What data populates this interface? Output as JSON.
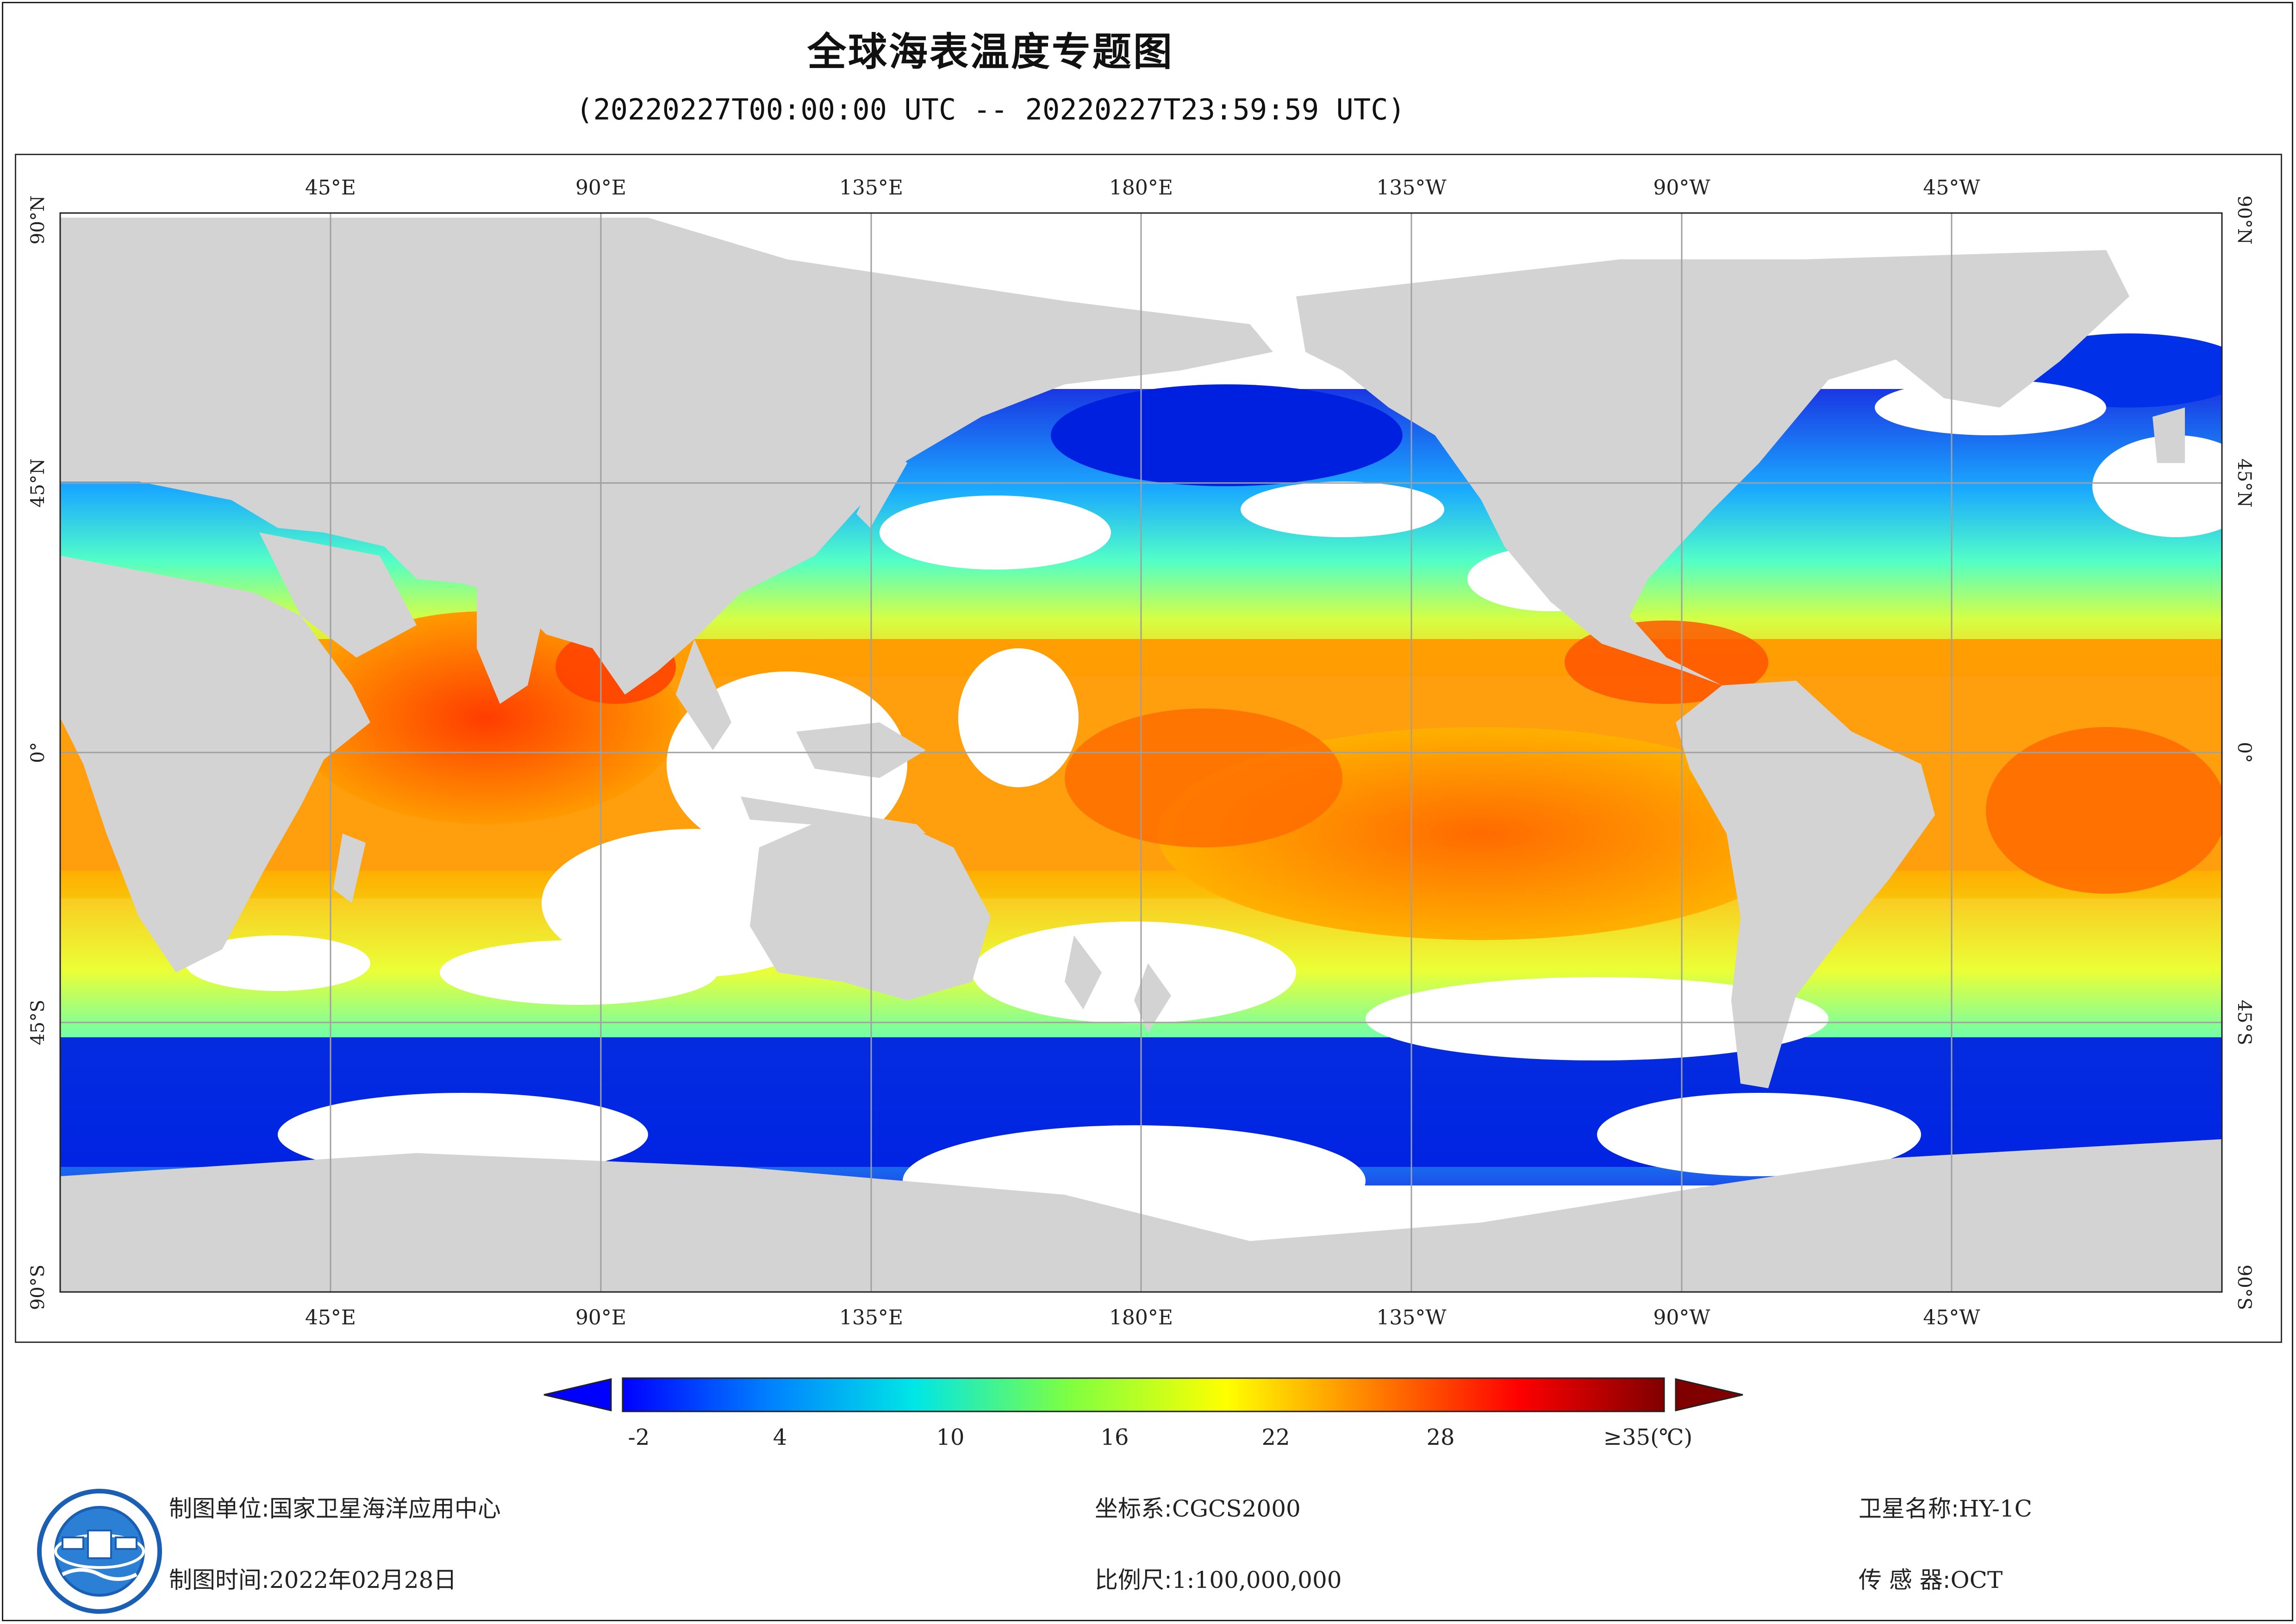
{
  "title": "全球海表温度专题图",
  "subtitle": "(20220227T00:00:00 UTC -- 20220227T23:59:59 UTC)",
  "map": {
    "lon_labels": [
      "45°E",
      "90°E",
      "135°E",
      "180°E",
      "135°W",
      "90°W",
      "45°W"
    ],
    "lat_labels": [
      "90°N",
      "45°N",
      "0°",
      "45°S",
      "90°S"
    ],
    "colors": {
      "land": "#d3d3d3",
      "cloud": "#ffffff",
      "grid": "#a0a0a0"
    }
  },
  "legend": {
    "labels": [
      "-2",
      "4",
      "10",
      "16",
      "22",
      "28",
      "≥35(℃)"
    ],
    "colors": [
      "#0000ff",
      "#0080ff",
      "#00e6e6",
      "#80ff40",
      "#ffff00",
      "#ff8000",
      "#ff0000",
      "#800000"
    ]
  },
  "footer": {
    "unit_label": "制图单位:",
    "unit_value": "国家卫星海洋应用中心",
    "time_label": "制图时间:",
    "time_value": "2022年02月28日",
    "crs_label": "坐标系:",
    "crs_value": "CGCS2000",
    "scale_label": "比例尺:",
    "scale_value": "1:100,000,000",
    "satellite_label": "卫星名称:",
    "satellite_value": "HY-1C",
    "sensor_label": "传 感 器:",
    "sensor_value": "OCT"
  }
}
